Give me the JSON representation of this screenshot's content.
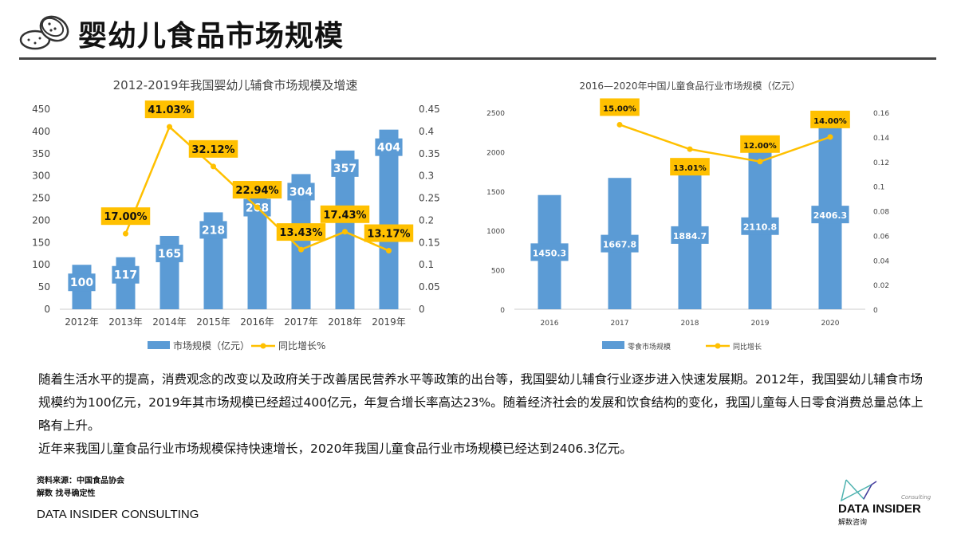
{
  "header": {
    "title": "婴幼儿食品市场规模",
    "icon": "cookie-icon"
  },
  "chart_data": [
    {
      "type": "bar+line",
      "title": "2012-2019年我国婴幼儿辅食市场规模及增速",
      "categories": [
        "2012年",
        "2013年",
        "2014年",
        "2015年",
        "2016年",
        "2017年",
        "2018年",
        "2019年"
      ],
      "series": [
        {
          "name": "市场规模（亿元）",
          "type": "bar",
          "axis": "left",
          "color": "#5B9BD5",
          "values": [
            100,
            117,
            165,
            218,
            268,
            304,
            357,
            404
          ],
          "labels": [
            "100",
            "117",
            "165",
            "218",
            "268",
            "304",
            "357",
            "404"
          ]
        },
        {
          "name": "同比增长%",
          "type": "line",
          "axis": "right",
          "color": "#FFC000",
          "values": [
            null,
            0.17,
            0.4103,
            0.3212,
            0.2294,
            0.1343,
            0.1743,
            0.1317
          ],
          "labels": [
            "",
            "17.00%",
            "41.03%",
            "32.12%",
            "22.94%",
            "13.43%",
            "17.43%",
            "13.17%"
          ]
        }
      ],
      "ylim": [
        0,
        450
      ],
      "yticks": [
        "0",
        "50",
        "100",
        "150",
        "200",
        "250",
        "300",
        "350",
        "400",
        "450"
      ],
      "y2lim": [
        0,
        0.45
      ],
      "y2ticks": [
        "0",
        "0.05",
        "0.1",
        "0.15",
        "0.2",
        "0.25",
        "0.3",
        "0.35",
        "0.4",
        "0.45"
      ],
      "legend": "bottom",
      "grid": false
    },
    {
      "type": "bar+line",
      "title": "2016—2020年中国儿童食品行业市场规模（亿元）",
      "categories": [
        "2016",
        "2017",
        "2018",
        "2019",
        "2020"
      ],
      "series": [
        {
          "name": "零食市场规模",
          "type": "bar",
          "axis": "left",
          "color": "#5B9BD5",
          "values": [
            1450.3,
            1667.8,
            1884.7,
            2110.8,
            2406.3
          ],
          "labels": [
            "1450.3",
            "1667.8",
            "1884.7",
            "2110.8",
            "2406.3"
          ]
        },
        {
          "name": "同比增长",
          "type": "line",
          "axis": "right",
          "color": "#FFC000",
          "values": [
            null,
            0.15,
            0.1301,
            0.12,
            0.14
          ],
          "labels": [
            "",
            "15.00%",
            "13.01%",
            "12.00%",
            "14.00%"
          ]
        }
      ],
      "ylim": [
        0,
        2500
      ],
      "yticks": [
        "0",
        "500",
        "1000",
        "1500",
        "2000",
        "2500"
      ],
      "y2lim": [
        0,
        0.16
      ],
      "y2ticks": [
        "0",
        "0.02",
        "0.04",
        "0.06",
        "0.08",
        "0.1",
        "0.12",
        "0.14",
        "0.16"
      ],
      "legend": "bottom",
      "grid": false
    }
  ],
  "body": {
    "p1": "随着生活水平的提高，消费观念的改变以及政府关于改善居民营养水平等政策的出台等，我国婴幼儿辅食行业逐步进入快速发展期。2012年，我国婴幼儿辅食市场规模约为100亿元，2019年其市场规模已经超过400亿元，年复合增长率高达23%。随着经济社会的发展和饮食结构的变化，我国儿童每人日零食消费总量总体上略有上升。",
    "p2": "近年来我国儿童食品行业市场规模保持快速增长，2020年我国儿童食品行业市场规模已经达到2406.3亿元。"
  },
  "footer": {
    "source": "资料来源：中国食品协会",
    "slogan": "解数 找寻确定性",
    "brand": "DATA INSIDER CONSULTING",
    "logo_name": "DATA INSIDER",
    "logo_cn": "解数咨询",
    "logo_en": "Consulting"
  }
}
